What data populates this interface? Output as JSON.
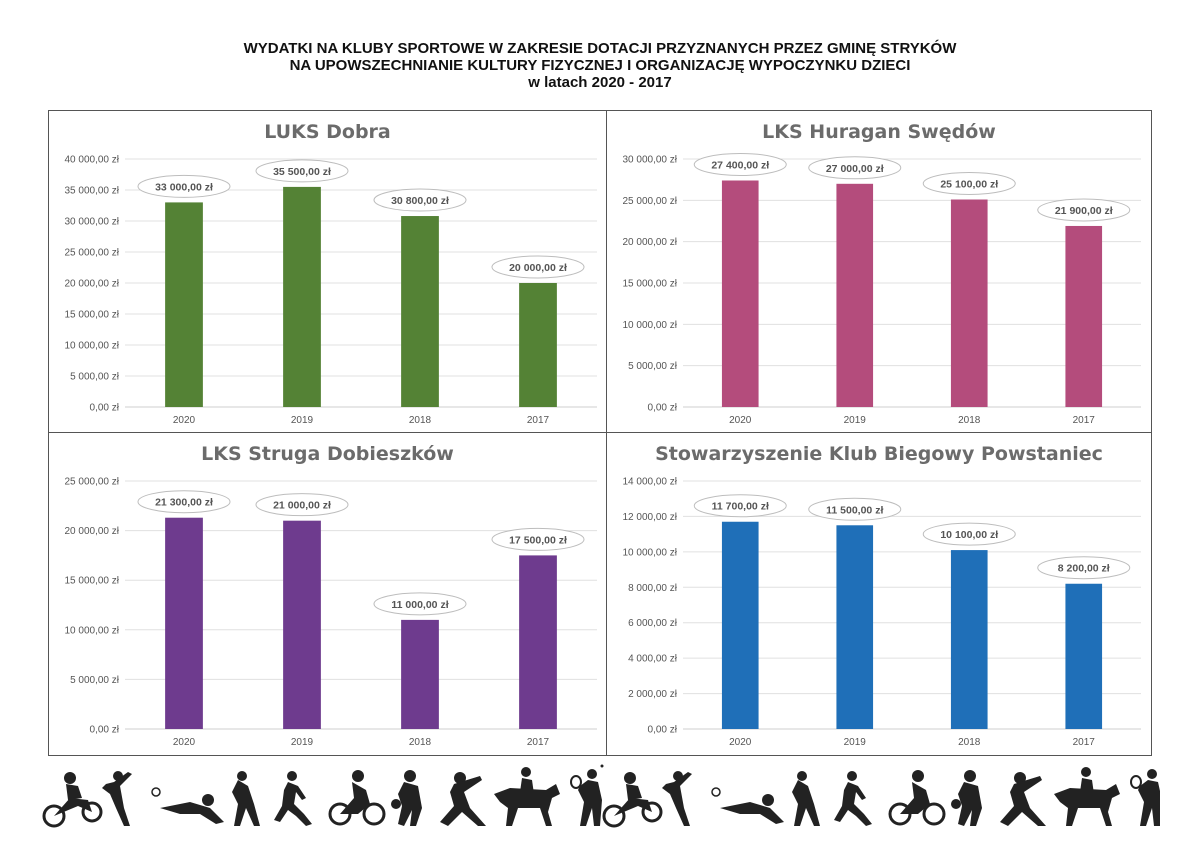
{
  "page": {
    "title_lines": [
      "WYDATKI NA KLUBY SPORTOWE W ZAKRESIE DOTACJI PRZYZNANYCH PRZEZ GMINĘ STRYKÓW",
      "NA UPOWSZECHNIANIE KULTURY FIZYCZNEJ I ORGANIZACJĘ WYPOCZYNKU DZIECI",
      "w latach 2020 - 2017"
    ]
  },
  "chart_data": [
    {
      "type": "bar",
      "title": "LUKS Dobra",
      "categories": [
        "2020",
        "2019",
        "2018",
        "2017"
      ],
      "values": [
        33000,
        35500,
        30800,
        20000
      ],
      "data_labels": [
        "33 000,00 zł",
        "35 500,00 zł",
        "30 800,00 zł",
        "20 000,00 zł"
      ],
      "ylim": [
        0,
        40000
      ],
      "y_ticks": [
        "0,00 zł",
        "5 000,00 zł",
        "10 000,00 zł",
        "15 000,00 zł",
        "20 000,00 zł",
        "25 000,00 zł",
        "30 000,00 zł",
        "35 000,00 zł",
        "40 000,00 zł"
      ],
      "grid": true,
      "color": "#548235"
    },
    {
      "type": "bar",
      "title": "LKS Huragan Swędów",
      "categories": [
        "2020",
        "2019",
        "2018",
        "2017"
      ],
      "values": [
        27400,
        27000,
        25100,
        21900
      ],
      "data_labels": [
        "27 400,00 zł",
        "27 000,00 zł",
        "25 100,00 zł",
        "21 900,00 zł"
      ],
      "ylim": [
        0,
        30000
      ],
      "y_ticks": [
        "0,00 zł",
        "5 000,00 zł",
        "10 000,00 zł",
        "15 000,00 zł",
        "20 000,00 zł",
        "25 000,00 zł",
        "30 000,00 zł"
      ],
      "grid": true,
      "color": "#b44c7c"
    },
    {
      "type": "bar",
      "title": "LKS Struga Dobieszków",
      "categories": [
        "2020",
        "2019",
        "2018",
        "2017"
      ],
      "values": [
        21300,
        21000,
        11000,
        17500
      ],
      "data_labels": [
        "21 300,00 zł",
        "21 000,00 zł",
        "11 000,00 zł",
        "17 500,00 zł"
      ],
      "ylim": [
        0,
        25000
      ],
      "y_ticks": [
        "0,00 zł",
        "5 000,00 zł",
        "10 000,00 zł",
        "15 000,00 zł",
        "20 000,00 zł",
        "25 000,00 zł"
      ],
      "grid": true,
      "color": "#6e3b8e"
    },
    {
      "type": "bar",
      "title": "Stowarzyszenie Klub Biegowy Powstaniec",
      "categories": [
        "2020",
        "2019",
        "2018",
        "2017"
      ],
      "values": [
        11700,
        11500,
        10100,
        8200
      ],
      "data_labels": [
        "11 700,00 zł",
        "11 500,00 zł",
        "10 100,00 zł",
        "8 200,00 zł"
      ],
      "ylim": [
        0,
        14000
      ],
      "y_ticks": [
        "0,00 zł",
        "2 000,00 zł",
        "4 000,00 zł",
        "6 000,00 zł",
        "8 000,00 zł",
        "10 000,00 zł",
        "12 000,00 zł",
        "14 000,00 zł"
      ],
      "grid": true,
      "color": "#1f6fb8"
    }
  ]
}
